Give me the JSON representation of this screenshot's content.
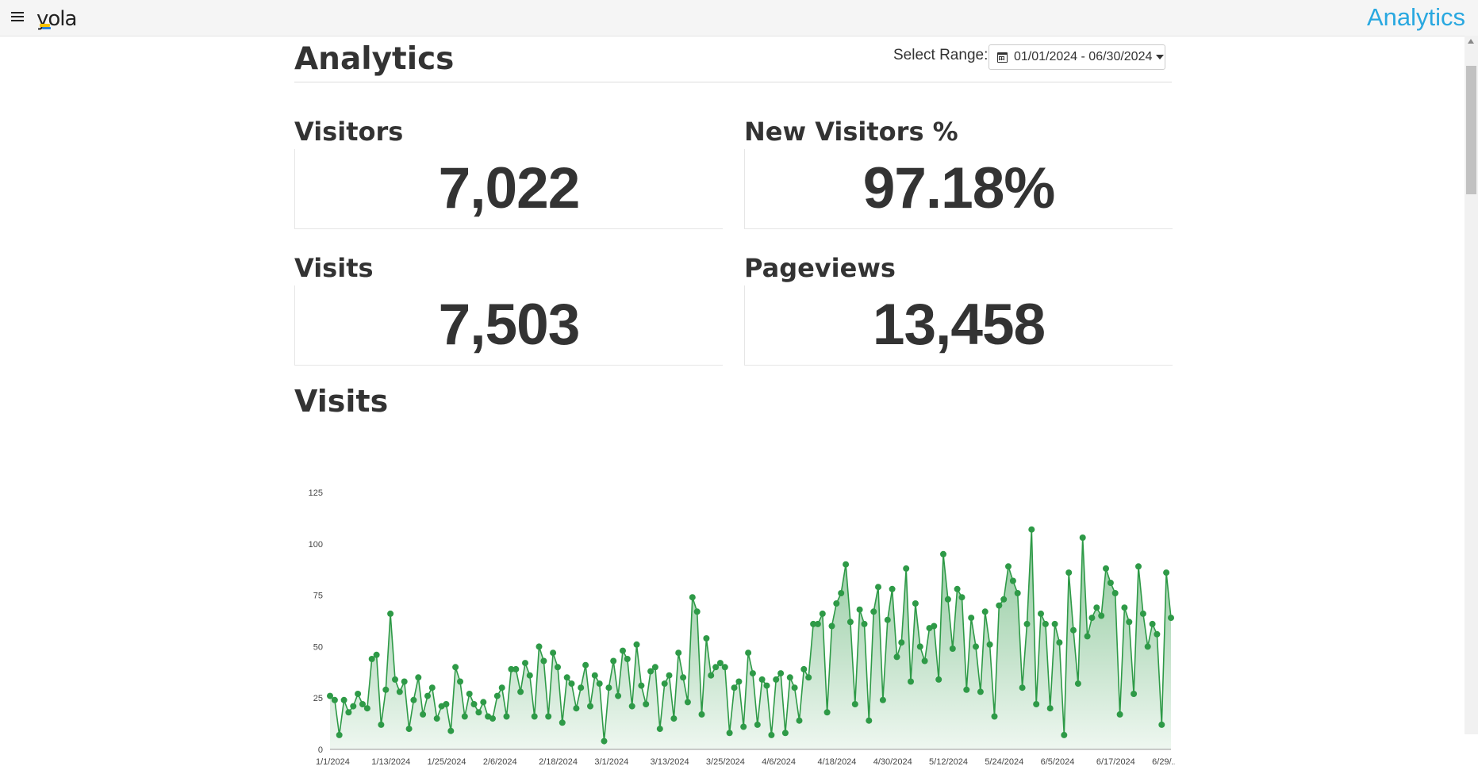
{
  "header": {
    "logo_text": "yola",
    "title": "Analytics"
  },
  "page": {
    "title": "Analytics",
    "range_label": "Select Range:",
    "range_value": "01/01/2024 - 06/30/2024"
  },
  "stats": {
    "visitors": {
      "label": "Visitors",
      "value": "7,022"
    },
    "new_visitors": {
      "label": "New Visitors %",
      "value": "97.18%"
    },
    "visits": {
      "label": "Visits",
      "value": "7,503"
    },
    "pageviews": {
      "label": "Pageviews",
      "value": "13,458"
    }
  },
  "chart_section_title": "Visits",
  "colors": {
    "accent": "#29a8e0",
    "series": "#2e9a47"
  },
  "icons": [
    "menu-icon",
    "calendar-icon",
    "caret-down-icon"
  ],
  "chart_data": {
    "type": "area",
    "title": "",
    "xlabel": "",
    "ylabel": "",
    "ylim": [
      0,
      125
    ],
    "yticks": [
      0,
      25,
      50,
      75,
      100,
      125
    ],
    "xtick_labels": [
      "1/1/2024",
      "1/13/2024",
      "1/25/2024",
      "2/6/2024",
      "2/18/2024",
      "3/1/2024",
      "3/13/2024",
      "3/25/2024",
      "4/6/2024",
      "4/18/2024",
      "4/30/2024",
      "5/12/2024",
      "5/24/2024",
      "6/5/2024",
      "6/17/2024",
      "6/29/..."
    ],
    "grid": false,
    "legend": "none",
    "series": [
      {
        "values": [
          26,
          24,
          7,
          24,
          18,
          21,
          27,
          22,
          20,
          44,
          46,
          12,
          29,
          66,
          34,
          28,
          33,
          10,
          24,
          35,
          17,
          26,
          30,
          15,
          21,
          22,
          9,
          40,
          33,
          16,
          27,
          22,
          18,
          23,
          16,
          15,
          26,
          30,
          16,
          39,
          39,
          28,
          42,
          36,
          16,
          50,
          43,
          16,
          47,
          40,
          13,
          35,
          32,
          20,
          30,
          41,
          21,
          36,
          32,
          4,
          30,
          43,
          26,
          48,
          44,
          21,
          51,
          31,
          22,
          38,
          40,
          10,
          32,
          36,
          15,
          47,
          35,
          23,
          74,
          67,
          17,
          54,
          36,
          40,
          42,
          40,
          8,
          30,
          33,
          11,
          47,
          37,
          12,
          34,
          31,
          7,
          34,
          37,
          8,
          35,
          30,
          14,
          39,
          35,
          61,
          61,
          66,
          18,
          60,
          71,
          76,
          90,
          62,
          22,
          68,
          61,
          14,
          67,
          79,
          24,
          63,
          78,
          45,
          52,
          88,
          33,
          71,
          50,
          43,
          59,
          60,
          34,
          95,
          73,
          49,
          78,
          74,
          29,
          64,
          50,
          28,
          67,
          51,
          16,
          70,
          73,
          89,
          82,
          76,
          30,
          61,
          107,
          22,
          66,
          61,
          20,
          61,
          52,
          7,
          86,
          58,
          32,
          103,
          55,
          64,
          69,
          65,
          88,
          81,
          76,
          17,
          69,
          62,
          27,
          89,
          66,
          50,
          61,
          56,
          12,
          86,
          64
        ]
      }
    ]
  }
}
